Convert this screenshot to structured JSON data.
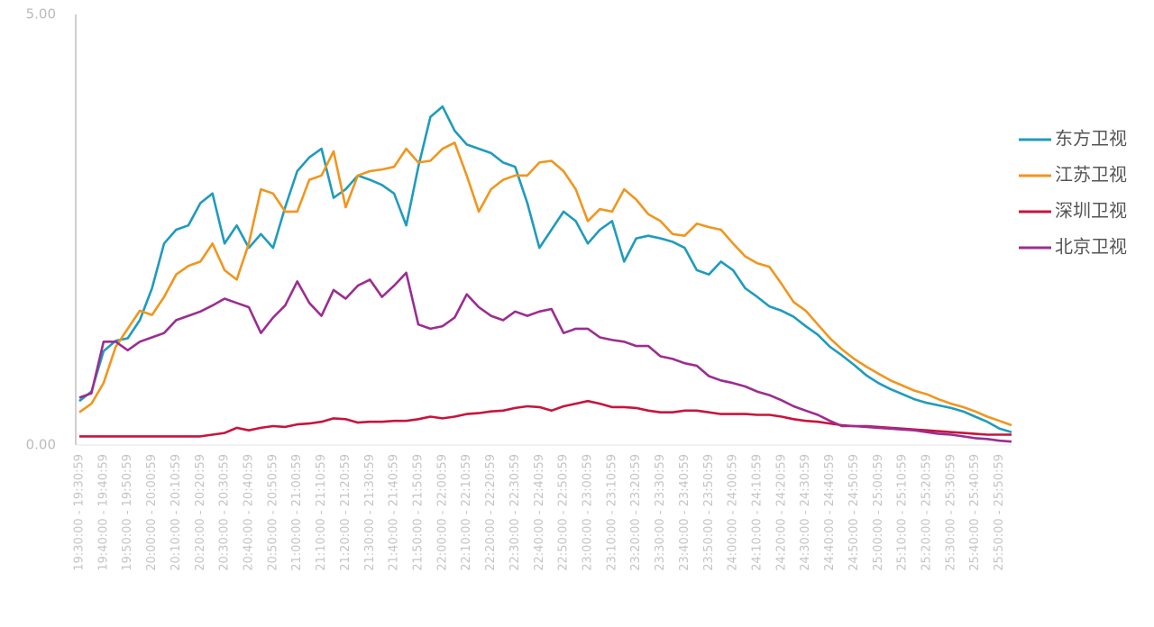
{
  "chart_data": {
    "type": "line",
    "categories": [
      "19:30:00 - 19:30:59",
      null,
      "19:40:00 - 19:40:59",
      null,
      "19:50:00 - 19:50:59",
      null,
      "20:00:00 - 20:00:59",
      null,
      "20:10:00 - 20:10:59",
      null,
      "20:20:00 - 20:20:59",
      null,
      "20:30:00 - 20:30:59",
      null,
      "20:40:00 - 20:40:59",
      null,
      "20:50:00 - 20:50:59",
      null,
      "21:00:00 - 21:00:59",
      null,
      "21:10:00 - 21:10:59",
      null,
      "21:20:00 - 21:20:59",
      null,
      "21:30:00 - 21:30:59",
      null,
      "21:40:00 - 21:40:59",
      null,
      "21:50:00 - 21:50:59",
      null,
      "22:00:00 - 22:00:59",
      null,
      "22:10:00 - 22:10:59",
      null,
      "22:20:00 - 22:20:59",
      null,
      "22:30:00 - 22:30:59",
      null,
      "22:40:00 - 22:40:59",
      null,
      "22:50:00 - 22:50:59",
      null,
      "23:00:00 - 23:00:59",
      null,
      "23:10:00 - 23:10:59",
      null,
      "23:20:00 - 23:20:59",
      null,
      "23:30:00 - 23:30:59",
      null,
      "23:40:00 - 23:40:59",
      null,
      "23:50:00 - 23:50:59",
      null,
      "24:00:00 - 24:00:59",
      null,
      "24:10:00 - 24:10:59",
      null,
      "24:20:00 - 24:20:59",
      null,
      "24:30:00 - 24:30:59",
      null,
      "24:40:00 - 24:40:59",
      null,
      "24:50:00 - 24:50:59",
      null,
      "25:00:00 - 25:00:59",
      null,
      "25:10:00 - 25:10:59",
      null,
      "25:20:00 - 25:20:59",
      null,
      "25:30:00 - 25:30:59",
      null,
      "25:40:00 - 25:40:59",
      null,
      "25:50:00 - 25:50:59",
      null
    ],
    "series": [
      {
        "name": "东方卫视",
        "color": "#1f9bbd",
        "values": [
          0.51,
          0.62,
          1.09,
          1.21,
          1.24,
          1.45,
          1.82,
          2.34,
          2.5,
          2.55,
          2.81,
          2.92,
          2.34,
          2.55,
          2.29,
          2.45,
          2.29,
          2.76,
          3.18,
          3.34,
          3.44,
          2.87,
          2.97,
          3.13,
          3.08,
          3.02,
          2.92,
          2.55,
          3.23,
          3.81,
          3.93,
          3.65,
          3.49,
          3.44,
          3.39,
          3.28,
          3.23,
          2.81,
          2.29,
          2.5,
          2.71,
          2.6,
          2.34,
          2.5,
          2.6,
          2.13,
          2.4,
          2.43,
          2.4,
          2.36,
          2.29,
          2.03,
          1.98,
          2.13,
          2.03,
          1.82,
          1.72,
          1.61,
          1.56,
          1.49,
          1.38,
          1.28,
          1.14,
          1.04,
          0.93,
          0.81,
          0.72,
          0.65,
          0.59,
          0.53,
          0.49,
          0.46,
          0.43,
          0.39,
          0.33,
          0.27,
          0.19,
          0.15
        ]
      },
      {
        "name": "江苏卫视",
        "color": "#f0961e",
        "values": [
          0.38,
          0.48,
          0.72,
          1.14,
          1.35,
          1.56,
          1.51,
          1.72,
          1.98,
          2.08,
          2.13,
          2.34,
          2.03,
          1.92,
          2.34,
          2.97,
          2.92,
          2.71,
          2.71,
          3.08,
          3.13,
          3.41,
          2.76,
          3.13,
          3.18,
          3.2,
          3.23,
          3.44,
          3.28,
          3.3,
          3.44,
          3.51,
          3.13,
          2.71,
          2.97,
          3.08,
          3.13,
          3.13,
          3.28,
          3.3,
          3.18,
          2.97,
          2.6,
          2.74,
          2.71,
          2.97,
          2.85,
          2.68,
          2.6,
          2.45,
          2.43,
          2.57,
          2.53,
          2.5,
          2.34,
          2.19,
          2.11,
          2.07,
          1.87,
          1.66,
          1.56,
          1.4,
          1.24,
          1.11,
          1.0,
          0.91,
          0.83,
          0.75,
          0.69,
          0.63,
          0.59,
          0.53,
          0.48,
          0.44,
          0.39,
          0.33,
          0.28,
          0.23
        ]
      },
      {
        "name": "深圳卫视",
        "color": "#c8143c",
        "values": [
          0.1,
          0.1,
          0.1,
          0.1,
          0.1,
          0.1,
          0.1,
          0.1,
          0.1,
          0.1,
          0.1,
          0.12,
          0.14,
          0.2,
          0.17,
          0.2,
          0.22,
          0.21,
          0.24,
          0.25,
          0.27,
          0.31,
          0.3,
          0.26,
          0.27,
          0.27,
          0.28,
          0.28,
          0.3,
          0.33,
          0.31,
          0.33,
          0.36,
          0.37,
          0.39,
          0.4,
          0.43,
          0.45,
          0.44,
          0.4,
          0.45,
          0.48,
          0.51,
          0.48,
          0.44,
          0.44,
          0.43,
          0.4,
          0.38,
          0.38,
          0.4,
          0.4,
          0.38,
          0.36,
          0.36,
          0.36,
          0.35,
          0.35,
          0.33,
          0.3,
          0.28,
          0.27,
          0.25,
          0.23,
          0.22,
          0.22,
          0.21,
          0.2,
          0.19,
          0.18,
          0.17,
          0.16,
          0.15,
          0.14,
          0.13,
          0.12,
          0.12,
          0.12
        ]
      },
      {
        "name": "北京卫视",
        "color": "#9b2d91",
        "values": [
          0.55,
          0.6,
          1.2,
          1.2,
          1.1,
          1.2,
          1.25,
          1.3,
          1.45,
          1.5,
          1.55,
          1.62,
          1.7,
          1.65,
          1.6,
          1.3,
          1.48,
          1.62,
          1.9,
          1.65,
          1.5,
          1.8,
          1.7,
          1.85,
          1.92,
          1.72,
          1.85,
          2.0,
          1.4,
          1.35,
          1.38,
          1.48,
          1.75,
          1.6,
          1.5,
          1.45,
          1.55,
          1.5,
          1.55,
          1.58,
          1.3,
          1.35,
          1.35,
          1.25,
          1.22,
          1.2,
          1.15,
          1.15,
          1.03,
          1.0,
          0.95,
          0.92,
          0.8,
          0.75,
          0.72,
          0.68,
          0.62,
          0.58,
          0.52,
          0.45,
          0.4,
          0.35,
          0.28,
          0.22,
          0.22,
          0.21,
          0.2,
          0.19,
          0.18,
          0.17,
          0.15,
          0.13,
          0.12,
          0.1,
          0.08,
          0.07,
          0.05,
          0.04
        ]
      }
    ],
    "ylim": [
      0,
      5
    ],
    "yticks": [
      {
        "value": 0,
        "label": "0.00"
      },
      {
        "value": 5,
        "label": "5.00"
      }
    ],
    "grid": false,
    "legend": "right"
  }
}
